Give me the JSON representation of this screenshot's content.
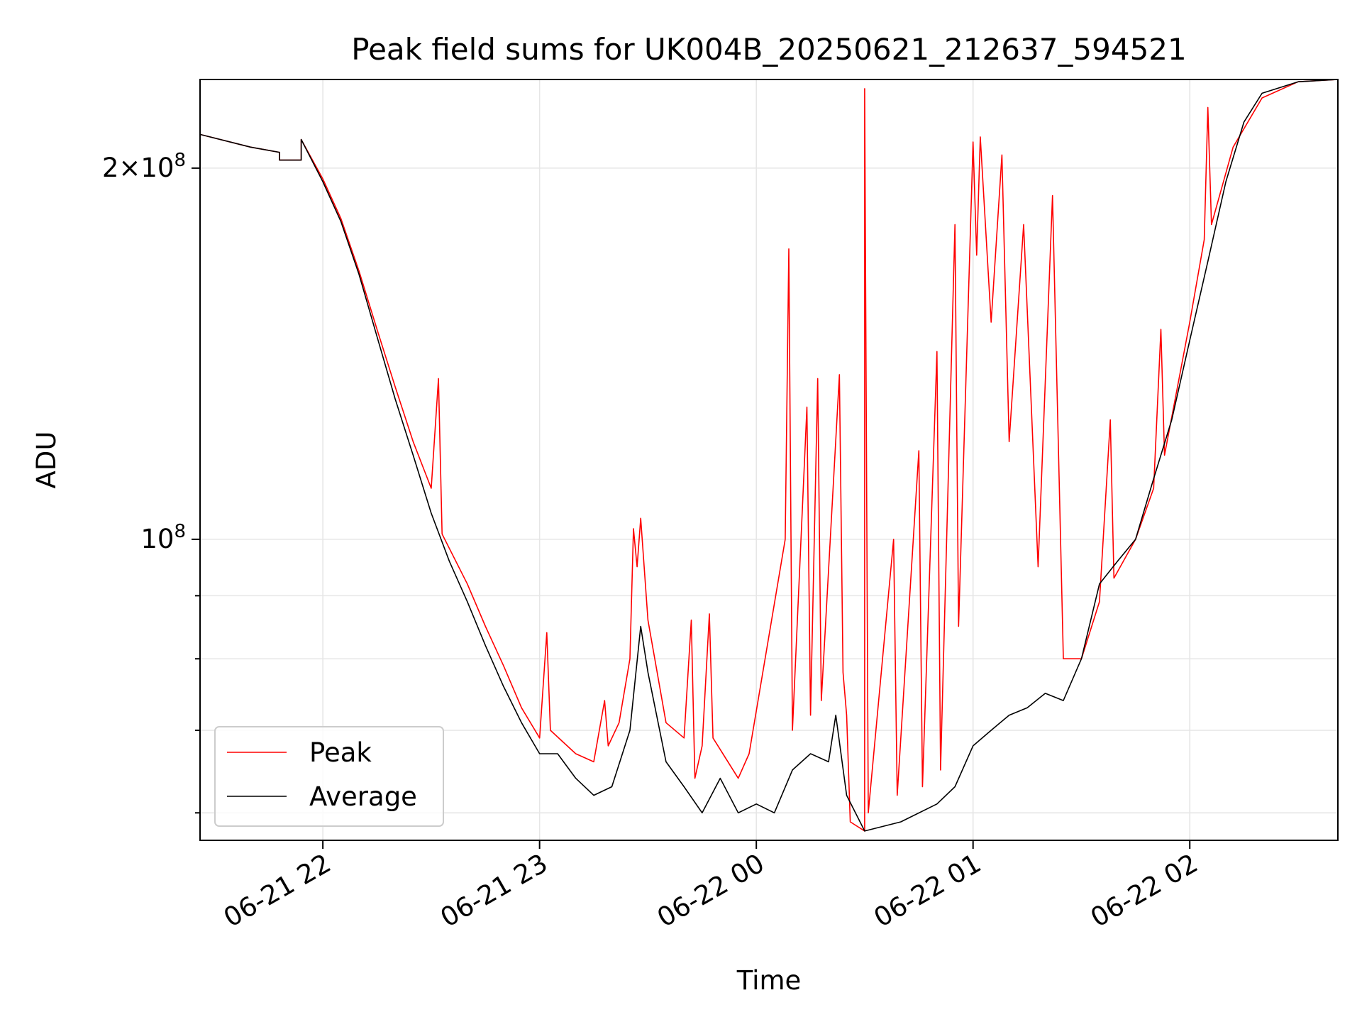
{
  "chart_data": {
    "type": "line",
    "title": "Peak field sums for UK004B_20250621_212637_594521",
    "xlabel": "Time",
    "ylabel": "ADU",
    "y_scale": "log",
    "grid": true,
    "legend_position": "lower-left",
    "x_range": [
      "2025-06-21 21:26",
      "2025-06-22 02:41"
    ],
    "ylim": [
      57000000,
      236000000
    ],
    "x_ticks": [
      {
        "x": "2025-06-21 22:00",
        "label": "06-21 22"
      },
      {
        "x": "2025-06-21 23:00",
        "label": "06-21 23"
      },
      {
        "x": "2025-06-22 00:00",
        "label": "06-22 00"
      },
      {
        "x": "2025-06-22 01:00",
        "label": "06-22 01"
      },
      {
        "x": "2025-06-22 02:00",
        "label": "06-22 02"
      }
    ],
    "y_major_ticks": [
      {
        "value": 100000000,
        "base": "10",
        "exp": "8",
        "mantissa": ""
      },
      {
        "value": 200000000,
        "base": "10",
        "exp": "8",
        "mantissa": "2"
      }
    ],
    "y_minor_ticks": [
      60000000,
      70000000,
      80000000,
      90000000
    ],
    "series": [
      {
        "name": "Peak",
        "color": "#ff0000",
        "points": [
          [
            "2025-06-21 21:26",
            213000000
          ],
          [
            "2025-06-21 21:40",
            208000000
          ],
          [
            "2025-06-21 21:48",
            206000000
          ],
          [
            "2025-06-21 21:48",
            203000000
          ],
          [
            "2025-06-21 21:54",
            203000000
          ],
          [
            "2025-06-21 21:54",
            211000000
          ],
          [
            "2025-06-21 22:00",
            196000000
          ],
          [
            "2025-06-21 22:05",
            182000000
          ],
          [
            "2025-06-21 22:10",
            165000000
          ],
          [
            "2025-06-21 22:15",
            148000000
          ],
          [
            "2025-06-21 22:20",
            133000000
          ],
          [
            "2025-06-21 22:25",
            120000000
          ],
          [
            "2025-06-21 22:30",
            110000000
          ],
          [
            "2025-06-21 22:32",
            135000000
          ],
          [
            "2025-06-21 22:33",
            101000000
          ],
          [
            "2025-06-21 22:40",
            92000000
          ],
          [
            "2025-06-21 22:45",
            85000000
          ],
          [
            "2025-06-21 22:50",
            79000000
          ],
          [
            "2025-06-21 22:55",
            73000000
          ],
          [
            "2025-06-21 23:00",
            69000000
          ],
          [
            "2025-06-21 23:02",
            84000000
          ],
          [
            "2025-06-21 23:03",
            70000000
          ],
          [
            "2025-06-21 23:10",
            67000000
          ],
          [
            "2025-06-21 23:15",
            66000000
          ],
          [
            "2025-06-21 23:18",
            74000000
          ],
          [
            "2025-06-21 23:19",
            68000000
          ],
          [
            "2025-06-21 23:22",
            71000000
          ],
          [
            "2025-06-21 23:25",
            80000000
          ],
          [
            "2025-06-21 23:26",
            102000000
          ],
          [
            "2025-06-21 23:27",
            95000000
          ],
          [
            "2025-06-21 23:28",
            104000000
          ],
          [
            "2025-06-21 23:30",
            86000000
          ],
          [
            "2025-06-21 23:35",
            71000000
          ],
          [
            "2025-06-21 23:40",
            69000000
          ],
          [
            "2025-06-21 23:42",
            86000000
          ],
          [
            "2025-06-21 23:43",
            64000000
          ],
          [
            "2025-06-21 23:45",
            68000000
          ],
          [
            "2025-06-21 23:47",
            87000000
          ],
          [
            "2025-06-21 23:48",
            69000000
          ],
          [
            "2025-06-21 23:55",
            64000000
          ],
          [
            "2025-06-21 23:58",
            67000000
          ],
          [
            "2025-06-22 00:08",
            100000000
          ],
          [
            "2025-06-22 00:09",
            172000000
          ],
          [
            "2025-06-22 00:10",
            70000000
          ],
          [
            "2025-06-22 00:14",
            128000000
          ],
          [
            "2025-06-22 00:15",
            72000000
          ],
          [
            "2025-06-22 00:17",
            135000000
          ],
          [
            "2025-06-22 00:18",
            74000000
          ],
          [
            "2025-06-22 00:23",
            136000000
          ],
          [
            "2025-06-22 00:24",
            78000000
          ],
          [
            "2025-06-22 00:25",
            72000000
          ],
          [
            "2025-06-22 00:26",
            59000000
          ],
          [
            "2025-06-22 00:30",
            58000000
          ],
          [
            "2025-06-22 00:30",
            232000000
          ],
          [
            "2025-06-22 00:31",
            60000000
          ],
          [
            "2025-06-22 00:38",
            100000000
          ],
          [
            "2025-06-22 00:39",
            62000000
          ],
          [
            "2025-06-22 00:45",
            118000000
          ],
          [
            "2025-06-22 00:46",
            63000000
          ],
          [
            "2025-06-22 00:50",
            142000000
          ],
          [
            "2025-06-22 00:51",
            65000000
          ],
          [
            "2025-06-22 00:55",
            180000000
          ],
          [
            "2025-06-22 00:56",
            85000000
          ],
          [
            "2025-06-22 01:00",
            210000000
          ],
          [
            "2025-06-22 01:01",
            170000000
          ],
          [
            "2025-06-22 01:02",
            212000000
          ],
          [
            "2025-06-22 01:05",
            150000000
          ],
          [
            "2025-06-22 01:08",
            205000000
          ],
          [
            "2025-06-22 01:10",
            120000000
          ],
          [
            "2025-06-22 01:14",
            180000000
          ],
          [
            "2025-06-22 01:18",
            95000000
          ],
          [
            "2025-06-22 01:22",
            190000000
          ],
          [
            "2025-06-22 01:25",
            80000000
          ],
          [
            "2025-06-22 01:30",
            80000000
          ],
          [
            "2025-06-22 01:35",
            89000000
          ],
          [
            "2025-06-22 01:38",
            125000000
          ],
          [
            "2025-06-22 01:39",
            93000000
          ],
          [
            "2025-06-22 01:45",
            100000000
          ],
          [
            "2025-06-22 01:50",
            110000000
          ],
          [
            "2025-06-22 01:52",
            148000000
          ],
          [
            "2025-06-22 01:53",
            117000000
          ],
          [
            "2025-06-22 02:00",
            150000000
          ],
          [
            "2025-06-22 02:04",
            175000000
          ],
          [
            "2025-06-22 02:05",
            224000000
          ],
          [
            "2025-06-22 02:06",
            180000000
          ],
          [
            "2025-06-22 02:12",
            208000000
          ],
          [
            "2025-06-22 02:20",
            228000000
          ],
          [
            "2025-06-22 02:30",
            235000000
          ],
          [
            "2025-06-22 02:41",
            236000000
          ]
        ]
      },
      {
        "name": "Average",
        "color": "#000000",
        "points": [
          [
            "2025-06-21 21:26",
            213000000
          ],
          [
            "2025-06-21 21:40",
            208000000
          ],
          [
            "2025-06-21 21:48",
            206000000
          ],
          [
            "2025-06-21 21:48",
            203000000
          ],
          [
            "2025-06-21 21:54",
            203000000
          ],
          [
            "2025-06-21 21:54",
            211000000
          ],
          [
            "2025-06-21 22:00",
            195000000
          ],
          [
            "2025-06-21 22:05",
            181000000
          ],
          [
            "2025-06-21 22:10",
            164000000
          ],
          [
            "2025-06-21 22:15",
            146000000
          ],
          [
            "2025-06-21 22:20",
            130000000
          ],
          [
            "2025-06-21 22:25",
            117000000
          ],
          [
            "2025-06-21 22:30",
            105000000
          ],
          [
            "2025-06-21 22:35",
            96000000
          ],
          [
            "2025-06-21 22:40",
            89000000
          ],
          [
            "2025-06-21 22:45",
            82000000
          ],
          [
            "2025-06-21 22:50",
            76000000
          ],
          [
            "2025-06-21 22:55",
            71000000
          ],
          [
            "2025-06-21 23:00",
            67000000
          ],
          [
            "2025-06-21 23:05",
            67000000
          ],
          [
            "2025-06-21 23:10",
            64000000
          ],
          [
            "2025-06-21 23:15",
            62000000
          ],
          [
            "2025-06-21 23:20",
            63000000
          ],
          [
            "2025-06-21 23:25",
            70000000
          ],
          [
            "2025-06-21 23:28",
            85000000
          ],
          [
            "2025-06-21 23:30",
            78000000
          ],
          [
            "2025-06-21 23:35",
            66000000
          ],
          [
            "2025-06-21 23:40",
            63000000
          ],
          [
            "2025-06-21 23:45",
            60000000
          ],
          [
            "2025-06-21 23:50",
            64000000
          ],
          [
            "2025-06-21 23:55",
            60000000
          ],
          [
            "2025-06-22 00:00",
            61000000
          ],
          [
            "2025-06-22 00:05",
            60000000
          ],
          [
            "2025-06-22 00:10",
            65000000
          ],
          [
            "2025-06-22 00:15",
            67000000
          ],
          [
            "2025-06-22 00:20",
            66000000
          ],
          [
            "2025-06-22 00:22",
            72000000
          ],
          [
            "2025-06-22 00:25",
            62000000
          ],
          [
            "2025-06-22 00:30",
            58000000
          ],
          [
            "2025-06-22 00:40",
            59000000
          ],
          [
            "2025-06-22 00:50",
            61000000
          ],
          [
            "2025-06-22 00:55",
            63000000
          ],
          [
            "2025-06-22 01:00",
            68000000
          ],
          [
            "2025-06-22 01:05",
            70000000
          ],
          [
            "2025-06-22 01:10",
            72000000
          ],
          [
            "2025-06-22 01:15",
            73000000
          ],
          [
            "2025-06-22 01:20",
            75000000
          ],
          [
            "2025-06-22 01:25",
            74000000
          ],
          [
            "2025-06-22 01:30",
            80000000
          ],
          [
            "2025-06-22 01:35",
            92000000
          ],
          [
            "2025-06-22 01:40",
            96000000
          ],
          [
            "2025-06-22 01:45",
            100000000
          ],
          [
            "2025-06-22 01:50",
            112000000
          ],
          [
            "2025-06-22 01:55",
            125000000
          ],
          [
            "2025-06-22 02:00",
            145000000
          ],
          [
            "2025-06-22 02:05",
            168000000
          ],
          [
            "2025-06-22 02:10",
            195000000
          ],
          [
            "2025-06-22 02:15",
            218000000
          ],
          [
            "2025-06-22 02:20",
            230000000
          ],
          [
            "2025-06-22 02:30",
            235000000
          ],
          [
            "2025-06-22 02:41",
            236000000
          ]
        ]
      }
    ]
  }
}
